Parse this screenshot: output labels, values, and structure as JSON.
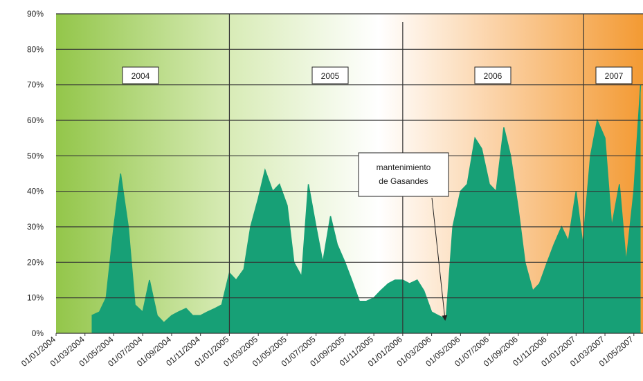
{
  "chart_data": {
    "type": "area",
    "x": [
      "01/01/2004",
      "15/01/2004",
      "01/02/2004",
      "15/02/2004",
      "01/03/2004",
      "15/03/2004",
      "01/04/2004",
      "15/04/2004",
      "01/05/2004",
      "15/05/2004",
      "01/06/2004",
      "15/06/2004",
      "01/07/2004",
      "15/07/2004",
      "01/08/2004",
      "15/08/2004",
      "01/09/2004",
      "15/09/2004",
      "01/10/2004",
      "15/10/2004",
      "01/11/2004",
      "15/11/2004",
      "01/12/2004",
      "15/12/2004",
      "01/01/2005",
      "15/01/2005",
      "01/02/2005",
      "15/02/2005",
      "01/03/2005",
      "15/03/2005",
      "01/04/2005",
      "15/04/2005",
      "01/05/2005",
      "15/05/2005",
      "01/06/2005",
      "15/06/2005",
      "01/07/2005",
      "15/07/2005",
      "01/08/2005",
      "15/08/2005",
      "01/09/2005",
      "15/09/2005",
      "01/10/2005",
      "15/10/2005",
      "01/11/2005",
      "15/11/2005",
      "01/12/2005",
      "15/12/2005",
      "01/01/2006",
      "15/01/2006",
      "01/02/2006",
      "15/02/2006",
      "01/03/2006",
      "15/03/2006",
      "01/04/2006",
      "15/04/2006",
      "01/05/2006",
      "15/05/2006",
      "01/06/2006",
      "15/06/2006",
      "01/07/2006",
      "15/07/2006",
      "01/08/2006",
      "15/08/2006",
      "01/09/2006",
      "15/09/2006",
      "01/10/2006",
      "15/10/2006",
      "01/11/2006",
      "15/11/2006",
      "01/12/2006",
      "15/12/2006",
      "01/01/2007",
      "15/01/2007",
      "01/02/2007",
      "15/02/2007",
      "01/03/2007",
      "15/03/2007",
      "01/04/2007",
      "15/04/2007",
      "01/05/2007",
      "15/05/2007"
    ],
    "series": [
      {
        "color": "#17a076",
        "values": [
          null,
          null,
          null,
          null,
          null,
          5,
          6,
          10,
          30,
          45,
          30,
          8,
          6,
          15,
          5,
          3,
          5,
          6,
          7,
          5,
          5,
          6,
          7,
          8,
          17,
          15,
          18,
          30,
          38,
          46,
          40,
          42,
          36,
          20,
          16,
          42,
          30,
          20,
          33,
          25,
          20,
          15,
          9,
          9,
          10,
          12,
          14,
          15,
          15,
          14,
          15,
          12,
          6,
          5,
          4,
          30,
          40,
          42,
          55,
          52,
          42,
          40,
          58,
          50,
          35,
          20,
          12,
          14,
          20,
          25,
          30,
          26,
          40,
          25,
          50,
          60,
          55,
          30,
          42,
          20,
          40,
          70
        ]
      }
    ],
    "xlim": [
      "01/01/2004",
      "20/05/2007"
    ],
    "xticks": [
      "01/01/2004",
      "01/03/2004",
      "01/05/2004",
      "01/07/2004",
      "01/09/2004",
      "01/11/2004",
      "01/01/2005",
      "01/03/2005",
      "01/05/2005",
      "01/07/2005",
      "01/09/2005",
      "01/11/2005",
      "01/01/2006",
      "01/03/2006",
      "01/05/2006",
      "01/07/2006",
      "01/09/2006",
      "01/11/2006",
      "01/01/2007",
      "01/03/2007",
      "01/05/2007"
    ],
    "ylim": [
      0,
      90
    ],
    "yticks": [
      {
        "value": 0,
        "label": "0%"
      },
      {
        "value": 10,
        "label": "10%"
      },
      {
        "value": 20,
        "label": "20%"
      },
      {
        "value": 30,
        "label": "30%"
      },
      {
        "value": 40,
        "label": "40%"
      },
      {
        "value": 50,
        "label": "50%"
      },
      {
        "value": 60,
        "label": "60%"
      },
      {
        "value": 70,
        "label": "70%"
      },
      {
        "value": 80,
        "label": "80%"
      },
      {
        "value": 90,
        "label": "90%"
      }
    ],
    "grid": true,
    "year_labels": [
      "2004",
      "2005",
      "2006",
      "2007"
    ],
    "annotation_lines": [
      "mantenimiento",
      "de Gasandes"
    ]
  }
}
